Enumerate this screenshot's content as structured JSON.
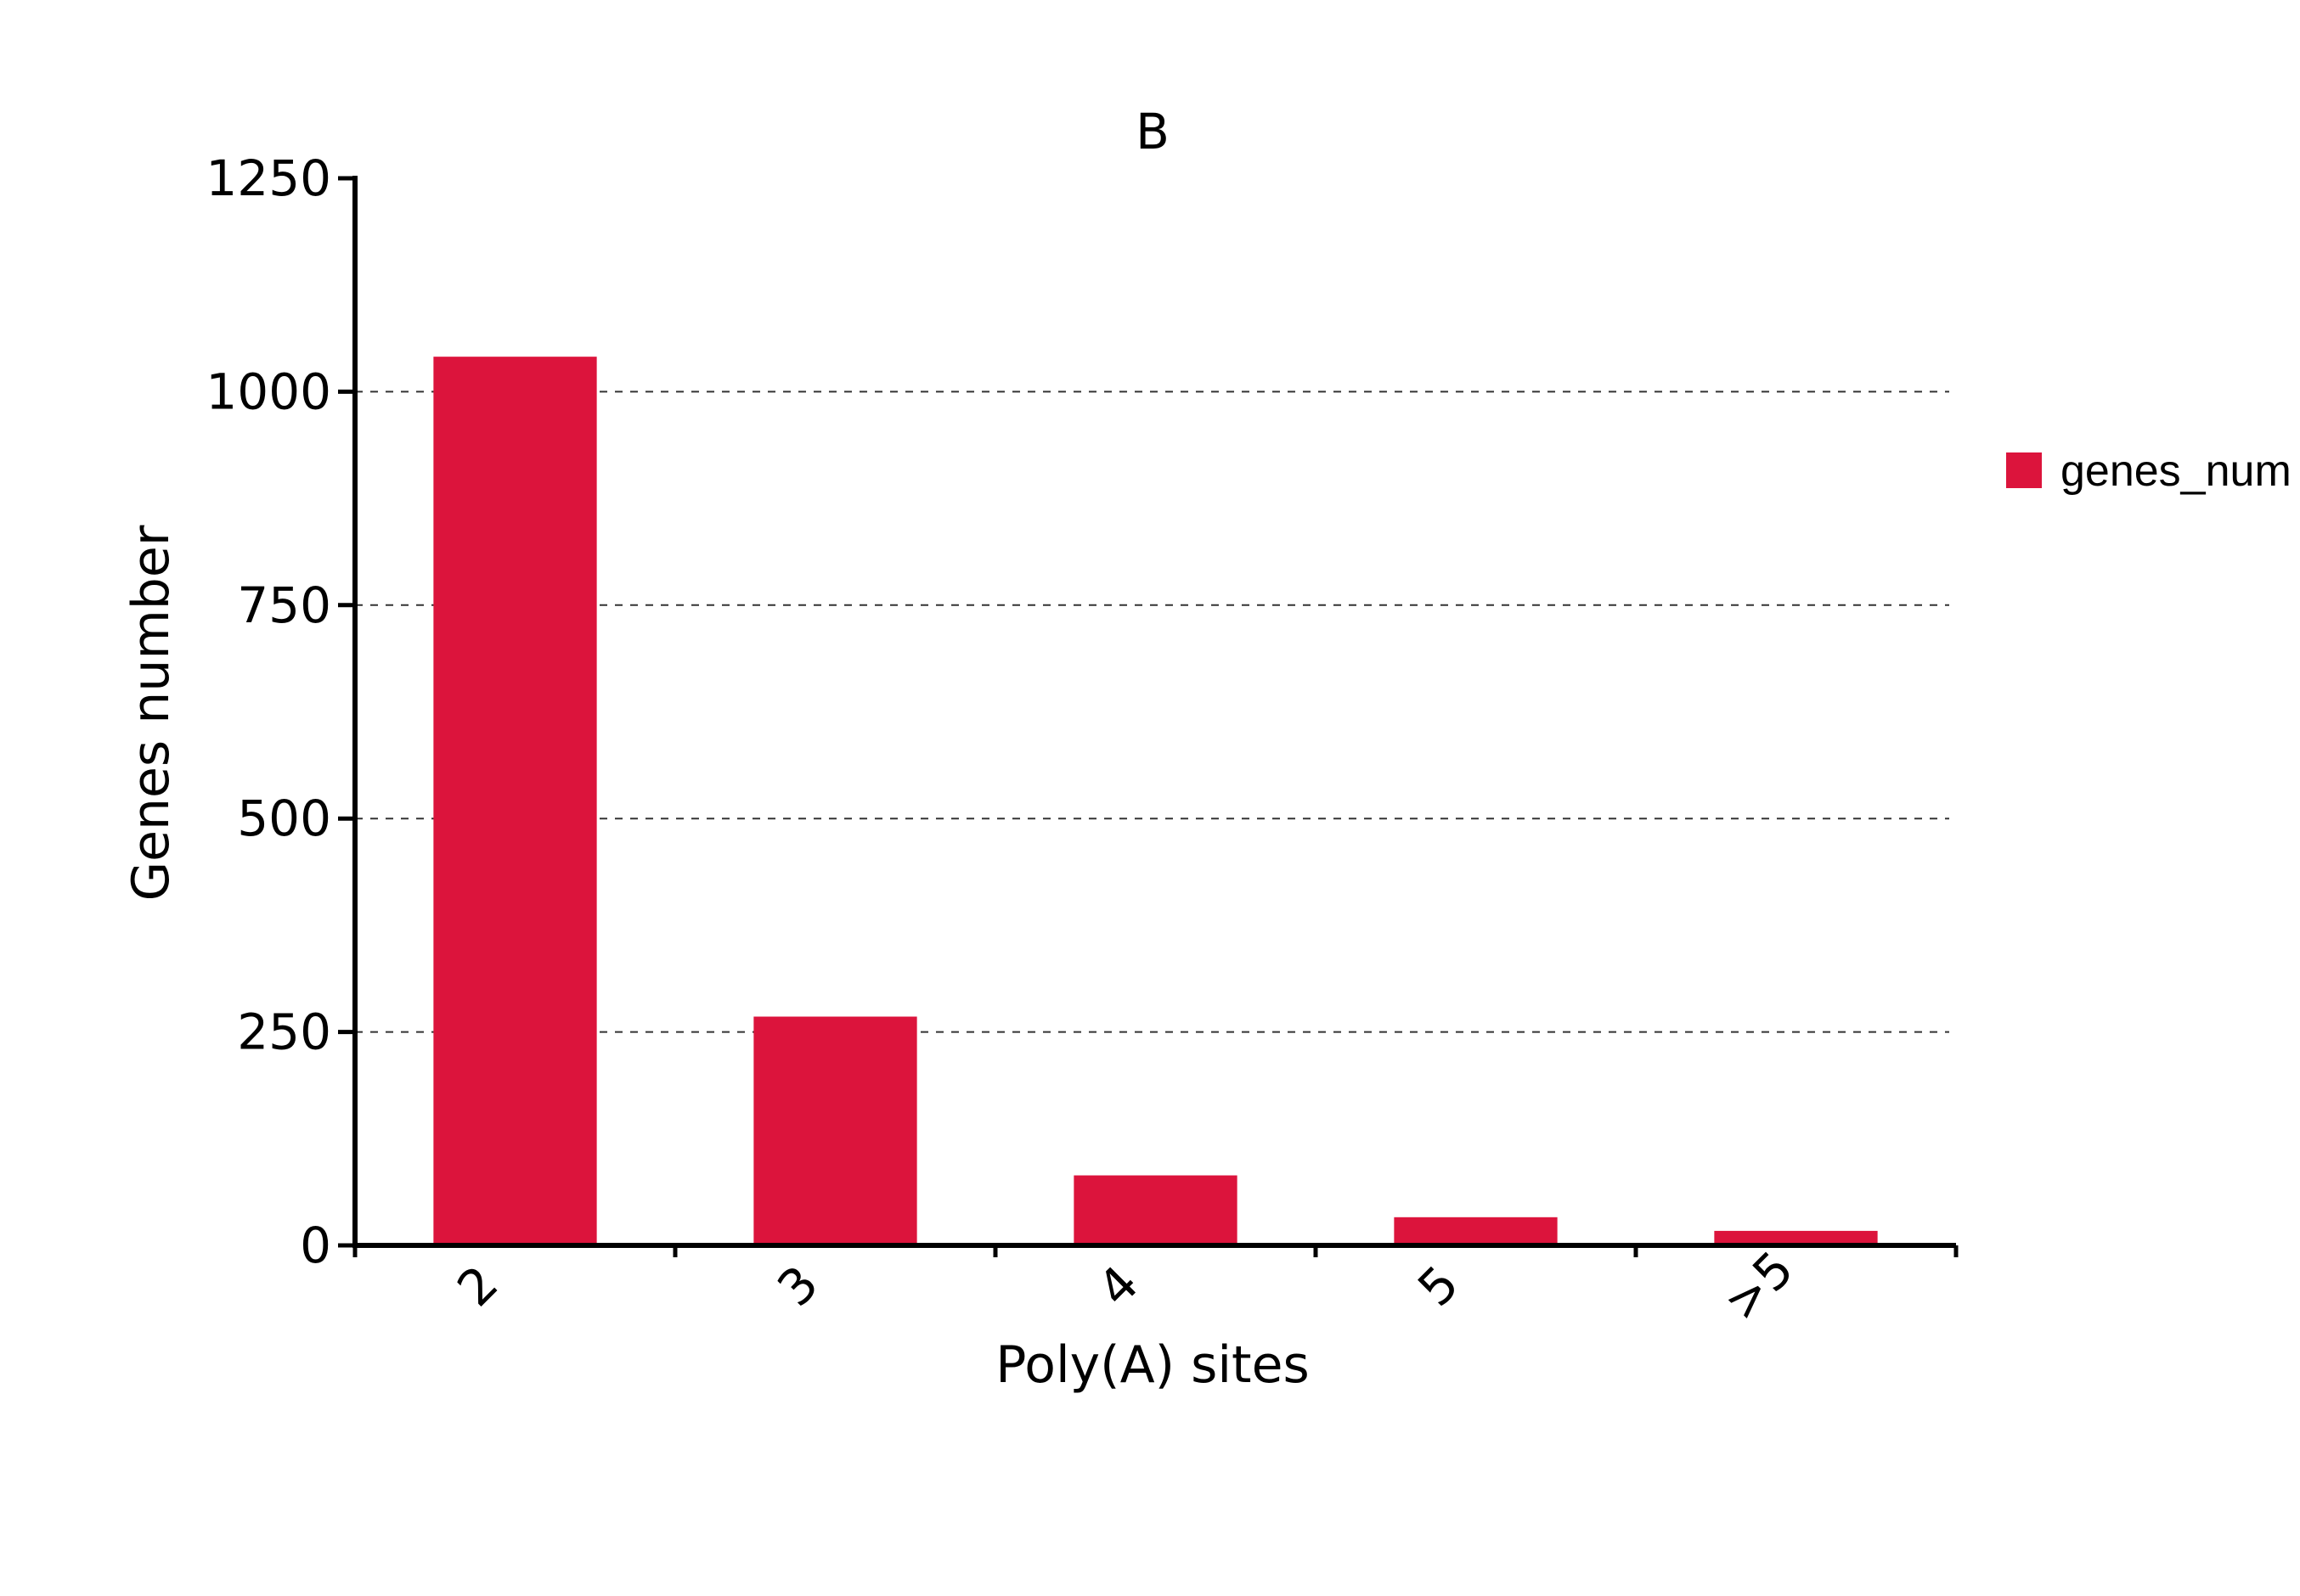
{
  "chart_data": {
    "type": "bar",
    "title": "B",
    "xlabel": "Poly(A) sites",
    "ylabel": "Genes number",
    "categories": [
      "2",
      "3",
      "4",
      "5",
      ">5"
    ],
    "series": [
      {
        "name": "genes_num",
        "values": [
          1041,
          268,
          82,
          33,
          17
        ]
      }
    ],
    "ylim": [
      0,
      1250
    ],
    "yticks": [
      0,
      250,
      500,
      750,
      1000,
      1250
    ],
    "grid": "horizontal-dashed",
    "legend_position": "right",
    "colors": {
      "bar": "#dc143c",
      "axis": "#000000",
      "grid": "#333333"
    }
  }
}
